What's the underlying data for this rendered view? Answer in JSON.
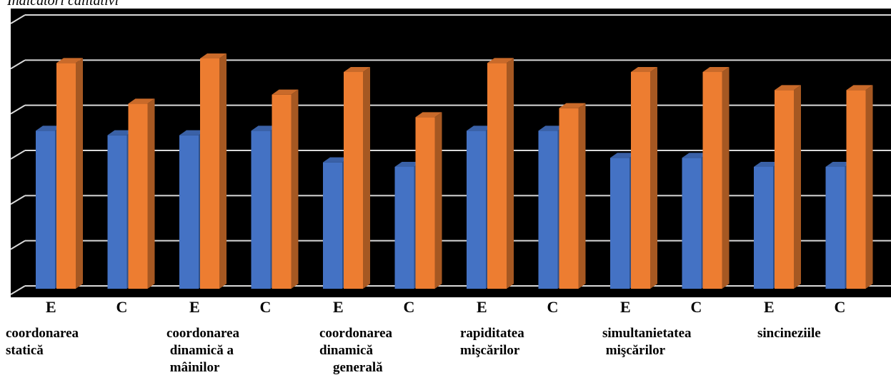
{
  "chart_data": {
    "type": "bar",
    "title": "Indicatori calitativi",
    "categories": [
      "E",
      "C",
      "E",
      "C",
      "E",
      "C",
      "E",
      "C",
      "E",
      "C",
      "E",
      "C"
    ],
    "groups": [
      "coordonarea\nstatică",
      "coordonarea\n dinamică a\n mâinilor",
      "coordonarea\ndinamică\n    generală",
      "rapiditatea\nmişcărilor",
      "simultanietatea\n mişcărilor",
      "sincineziile"
    ],
    "series": [
      {
        "values": [
          3.5,
          3.4,
          3.4,
          3.5,
          2.8,
          2.7,
          3.5,
          3.5,
          2.9,
          2.9,
          2.7,
          2.7
        ]
      },
      {
        "values": [
          5.0,
          4.1,
          5.1,
          4.3,
          4.8,
          3.8,
          5.0,
          4.0,
          4.8,
          4.8,
          4.4,
          4.4
        ]
      }
    ],
    "ylim": [
      0,
      6
    ],
    "grid": true,
    "colors": {
      "blue": "#4472C4",
      "orange": "#ED7D31",
      "background": "#000000",
      "grid": "#D9D9D9"
    }
  }
}
